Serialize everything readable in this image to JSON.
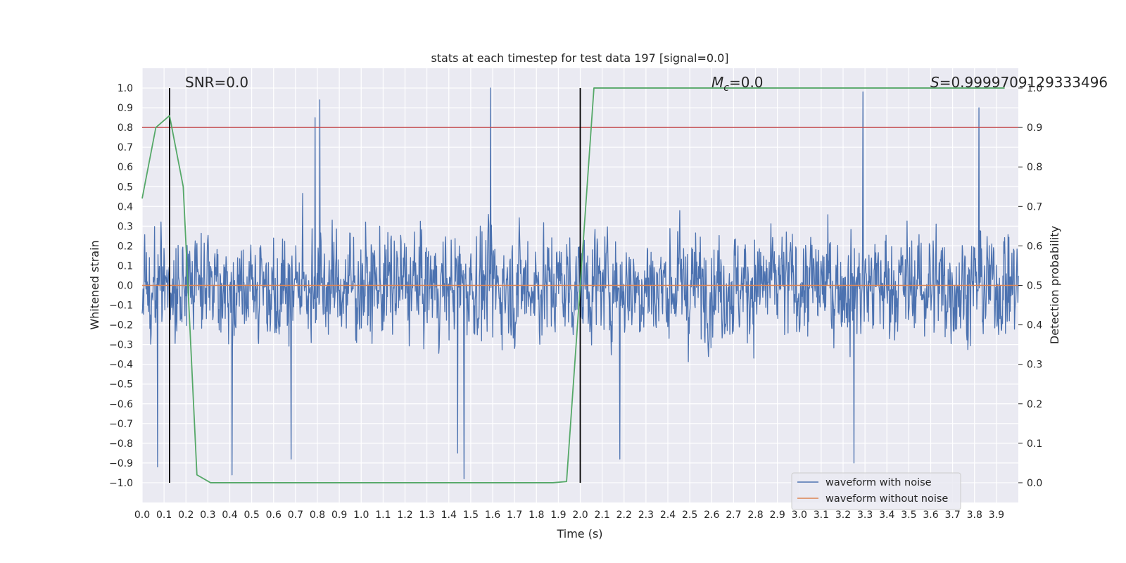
{
  "chart_data": {
    "type": "line",
    "title": "stats at each timestep for test data 197 [signal=0.0]",
    "xlabel": "Time (s)",
    "ylabel_left": "Whitened strain",
    "ylabel_right": "Detection probability",
    "xlim": [
      0.0,
      4.0
    ],
    "ylim_left": [
      -1.1,
      1.1
    ],
    "ylim_right": [
      -0.05,
      1.05
    ],
    "x_ticks": [
      "0.0",
      "0.1",
      "0.2",
      "0.3",
      "0.4",
      "0.5",
      "0.6",
      "0.7",
      "0.8",
      "0.9",
      "1.0",
      "1.1",
      "1.2",
      "1.3",
      "1.4",
      "1.5",
      "1.6",
      "1.7",
      "1.8",
      "1.9",
      "2.0",
      "2.1",
      "2.2",
      "2.3",
      "2.4",
      "2.5",
      "2.6",
      "2.7",
      "2.8",
      "2.9",
      "3.0",
      "3.1",
      "3.2",
      "3.3",
      "3.4",
      "3.5",
      "3.6",
      "3.7",
      "3.8",
      "3.9"
    ],
    "y_ticks_left": [
      "1.0",
      "0.9",
      "0.8",
      "0.7",
      "0.6",
      "0.5",
      "0.4",
      "0.3",
      "0.2",
      "0.1",
      "0.0",
      "−0.1",
      "−0.2",
      "−0.3",
      "−0.4",
      "−0.5",
      "−0.6",
      "−0.7",
      "−0.8",
      "−0.9",
      "−1.0"
    ],
    "y_ticks_right": [
      "1.0",
      "0.9",
      "0.8",
      "0.7",
      "0.6",
      "0.5",
      "0.4",
      "0.3",
      "0.2",
      "0.1",
      "0.0"
    ],
    "grid": true,
    "legend_position": "lower-right",
    "annotations": {
      "snr": "SNR=0.0",
      "mc_symbol": "M",
      "mc_sub": "c",
      "mc_value": "=0.0",
      "s_symbol": "S",
      "s_value": "=0.9999709129333496"
    },
    "vertical_lines_x": [
      0.125,
      2.0
    ],
    "threshold_y_right": 0.9,
    "series": [
      {
        "name": "waveform with noise",
        "axis": "left",
        "color": "#4c72b0",
        "kind": "noise",
        "x_range": [
          0.0,
          4.0
        ],
        "n_samples": 2048,
        "peaks": [
          {
            "x": 0.79,
            "y": 0.85
          },
          {
            "x": 0.81,
            "y": 0.94
          },
          {
            "x": 1.59,
            "y": 1.0
          },
          {
            "x": 3.29,
            "y": 0.98
          },
          {
            "x": 3.82,
            "y": 0.9
          },
          {
            "x": 1.47,
            "y": -0.98
          },
          {
            "x": 3.25,
            "y": -0.9
          },
          {
            "x": 0.07,
            "y": -0.92
          },
          {
            "x": 0.41,
            "y": -0.96
          },
          {
            "x": 0.68,
            "y": -0.88
          },
          {
            "x": 2.18,
            "y": -0.88
          },
          {
            "x": 1.44,
            "y": -0.85
          }
        ]
      },
      {
        "name": "waveform without noise",
        "axis": "left",
        "color": "#dd8452",
        "x": [
          0.0,
          4.0
        ],
        "y": [
          0.0,
          0.0
        ]
      },
      {
        "name": "Detection probability",
        "axis": "right",
        "color": "#55a868",
        "x": [
          0.0,
          0.0625,
          0.125,
          0.1875,
          0.25,
          0.3125,
          0.375,
          1.875,
          1.9375,
          2.0,
          2.0625,
          2.125,
          3.9375
        ],
        "y": [
          0.72,
          0.9,
          0.93,
          0.75,
          0.02,
          0.0,
          0.0,
          0.0,
          0.003,
          0.5,
          1.0,
          1.0,
          1.0
        ]
      }
    ]
  },
  "colors": {
    "plot_background": "#eaeaf2",
    "grid": "#ffffff",
    "threshold_line": "#c44e52",
    "vertical_line": "#000000"
  }
}
